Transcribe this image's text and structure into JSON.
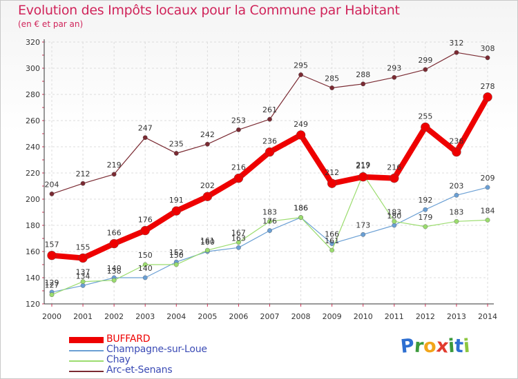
{
  "title": "Evolution des Impôts locaux pour la Commune par Habitant",
  "subtitle": "(en € et par an)",
  "logo": {
    "text": "Proxiti",
    "letters": [
      "P",
      "r",
      "o",
      "x",
      "i",
      "t",
      "i"
    ],
    "colors": [
      "#2d6fd1",
      "#3c9a3c",
      "#f2a51a",
      "#e23b2e",
      "#3c9a3c",
      "#2d6fd1",
      "#8cc63f"
    ]
  },
  "chart_data": {
    "type": "line",
    "x": [
      2000,
      2001,
      2002,
      2003,
      2004,
      2005,
      2006,
      2007,
      2008,
      2009,
      2010,
      2011,
      2012,
      2013,
      2014
    ],
    "ylim": [
      120,
      320
    ],
    "yticks": [
      120,
      140,
      160,
      180,
      200,
      220,
      240,
      260,
      280,
      300,
      320
    ],
    "grid": true,
    "legend_position": "bottom-left",
    "series": [
      {
        "name": "Arc-et-Senans",
        "color": "#7a2a32",
        "values": [
          204,
          212,
          219,
          247,
          235,
          242,
          253,
          261,
          295,
          285,
          288,
          293,
          299,
          312,
          308
        ]
      },
      {
        "name": "Champagne-sur-Loue",
        "color": "#6a9fd4",
        "values": [
          129,
          134,
          140,
          140,
          152,
          160,
          163,
          176,
          186,
          166,
          173,
          180,
          192,
          203,
          209
        ]
      },
      {
        "name": "Chay",
        "color": "#9bdc6e",
        "values": [
          127,
          137,
          138,
          150,
          150,
          161,
          167,
          183,
          186,
          161,
          219,
          183,
          179,
          183,
          184
        ]
      },
      {
        "name": "BUFFARD",
        "color": "#ee0000",
        "values": [
          157,
          155,
          166,
          176,
          191,
          202,
          216,
          236,
          249,
          212,
          217,
          216,
          255,
          236,
          278
        ]
      }
    ],
    "legend_order": [
      "BUFFARD",
      "Champagne-sur-Loue",
      "Chay",
      "Arc-et-Senans"
    ]
  }
}
